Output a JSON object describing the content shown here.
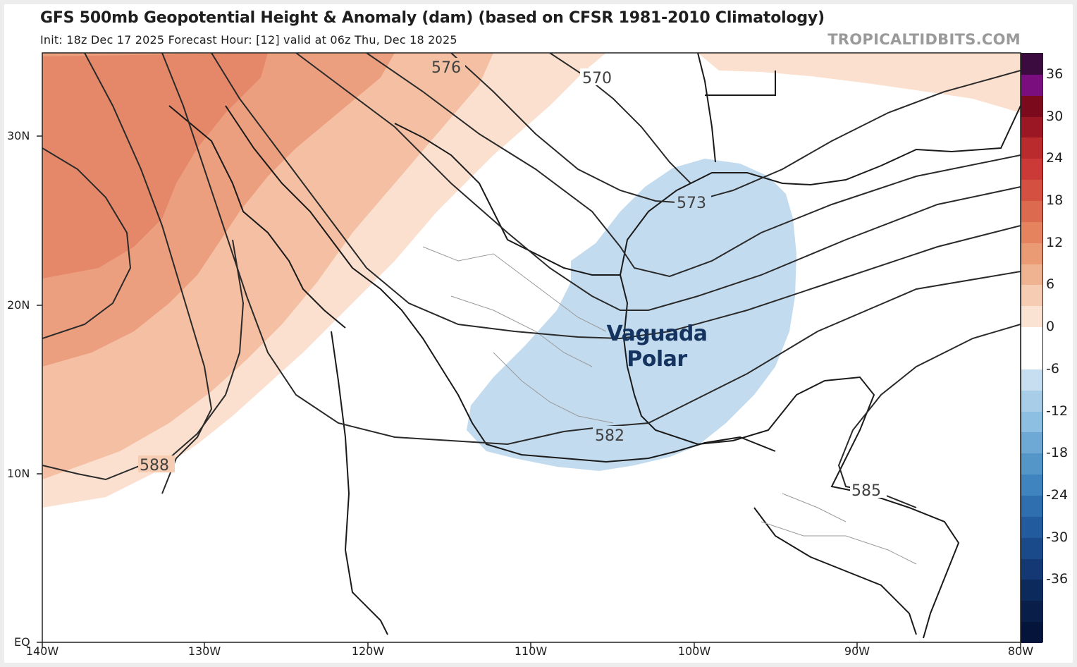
{
  "header": {
    "title": "GFS 500mb Geopotential Height & Anomaly (dam) (based on CFSR 1981-2010 Climatology)",
    "subtitle": "Init: 18z Dec 17 2025   Forecast Hour: [12]   valid at 06z Thu, Dec 18 2025",
    "credit": "TROPICALTIDBITS.COM"
  },
  "axes": {
    "lat_labels": [
      "30N",
      "20N",
      "10N",
      "EQ"
    ],
    "lon_labels": [
      "140W",
      "130W",
      "120W",
      "110W",
      "100W",
      "90W",
      "80W"
    ]
  },
  "colorbar": {
    "ticks": [
      "36",
      "30",
      "24",
      "18",
      "12",
      "6",
      "0",
      "-6",
      "-12",
      "-18",
      "-24",
      "-30",
      "-36"
    ],
    "colors": [
      "#3b0a3f",
      "#7a0e7e",
      "#7a0a1c",
      "#9b1723",
      "#b92b2d",
      "#cc3a38",
      "#d45040",
      "#dc6a4e",
      "#e4835e",
      "#eb9b73",
      "#f0b392",
      "#f6cdb3",
      "#fbe3d3",
      "#ffffff",
      "#ffffff",
      "#c6def0",
      "#a8cde9",
      "#8cbfe2",
      "#6ea9d6",
      "#5596c9",
      "#3f84bf",
      "#2f6fb0",
      "#235c9e",
      "#1a4a8a",
      "#133873",
      "#0d2a5c",
      "#091e48",
      "#05143a"
    ]
  },
  "contours": {
    "c570": "570",
    "c573": "573",
    "c576": "576",
    "c582": "582",
    "c585": "585",
    "c588": "588"
  },
  "annotation": {
    "line1": "Vaguada",
    "line2": "Polar"
  }
}
